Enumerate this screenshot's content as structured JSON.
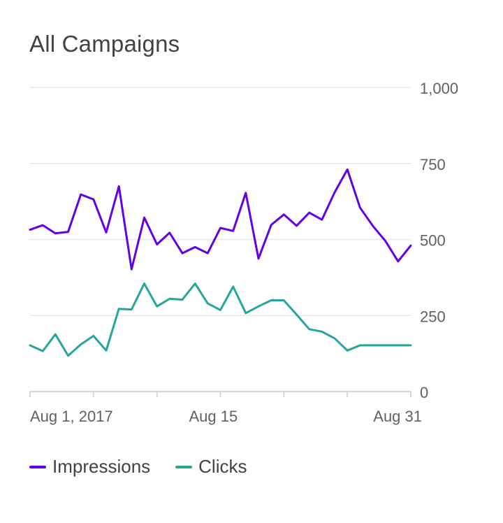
{
  "title": "All Campaigns",
  "colors": {
    "impressions": "#6200ea",
    "clicks": "#26a69a",
    "grid": "#e6e6e6",
    "axis": "#d6d6d6",
    "text": "#616161"
  },
  "legend": {
    "impressions": "Impressions",
    "clicks": "Clicks"
  },
  "chart_data": {
    "type": "line",
    "title": "All Campaigns",
    "xlabel": "",
    "ylabel": "",
    "ylim": [
      0,
      1000
    ],
    "yticks": [
      0,
      250,
      500,
      750,
      1000
    ],
    "ytick_labels": [
      "0",
      "250",
      "500",
      "750",
      "1,000"
    ],
    "xtick_labels": [
      {
        "day": 1,
        "label": "Aug 1, 2017"
      },
      {
        "day": 15,
        "label": "Aug 15"
      },
      {
        "day": 31,
        "label": "Aug 31"
      }
    ],
    "x_minor_ticks": [
      1,
      6,
      11,
      16,
      21,
      26,
      31
    ],
    "x": [
      1,
      2,
      3,
      4,
      5,
      6,
      7,
      8,
      9,
      10,
      11,
      12,
      13,
      14,
      15,
      16,
      17,
      18,
      19,
      20,
      21,
      22,
      23,
      24,
      25,
      26,
      27,
      28,
      29,
      30,
      31
    ],
    "grid": true,
    "legend_position": "bottom-left",
    "series": [
      {
        "name": "Impressions",
        "values": [
          532,
          547,
          520,
          525,
          648,
          632,
          523,
          675,
          402,
          572,
          484,
          522,
          455,
          475,
          455,
          538,
          528,
          653,
          437,
          548,
          582,
          545,
          588,
          565,
          655,
          730,
          605,
          545,
          495,
          428,
          480
        ]
      },
      {
        "name": "Clicks",
        "values": [
          152,
          133,
          188,
          118,
          155,
          183,
          135,
          272,
          270,
          355,
          280,
          305,
          302,
          355,
          290,
          268,
          345,
          258,
          280,
          300,
          300,
          253,
          205,
          197,
          175,
          135,
          152,
          152,
          152,
          152,
          152
        ]
      }
    ]
  }
}
